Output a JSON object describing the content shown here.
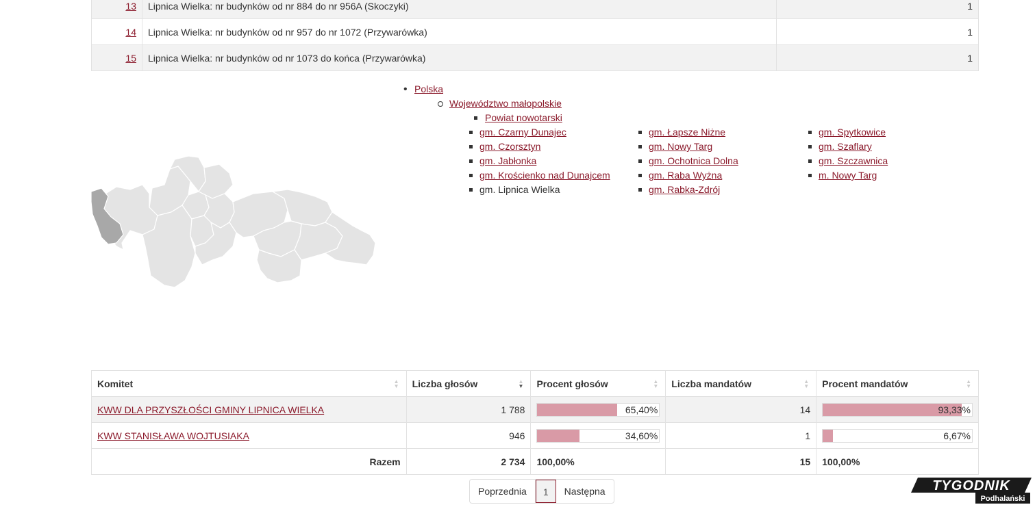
{
  "districts": [
    {
      "num": "13",
      "name": "Lipnica Wielka: nr budynków od nr 884 do nr 956A (Skoczyki)",
      "value": "1"
    },
    {
      "num": "14",
      "name": "Lipnica Wielka: nr budynków od nr 957 do nr 1072 (Przywarówka)",
      "value": "1"
    },
    {
      "num": "15",
      "name": "Lipnica Wielka: nr budynków od nr 1073 do końca (Przywarówka)",
      "value": "1"
    }
  ],
  "breadcrumb": {
    "country": "Polska",
    "voivodeship": "Województwo małopolskie",
    "county": "Powiat nowotarski"
  },
  "gminy": [
    "gm. Czarny Dunajec",
    "gm. Czorsztyn",
    "gm. Jabłonka",
    "gm. Krościenko nad Dunajcem",
    "gm. Lipnica Wielka",
    "gm. Łapsze Niżne",
    "gm. Nowy Targ",
    "gm. Ochotnica Dolna",
    "gm. Raba Wyżna",
    "gm. Rabka-Zdrój",
    "gm. Spytkowice",
    "gm. Szaflary",
    "gm. Szczawnica",
    "m. Nowy Targ"
  ],
  "current_gmina": "gm. Lipnica Wielka",
  "results": {
    "headers": [
      "Komitet",
      "Liczba głosów",
      "Procent głosów",
      "Liczba mandatów",
      "Procent mandatów"
    ],
    "rows": [
      {
        "name": "KWW DLA PRZYSZŁOŚCI GMINY LIPNICA WIELKA",
        "votes": "1 788",
        "vote_pct": "65,40%",
        "vote_frac": 0.654,
        "seats": "14",
        "seat_pct": "93,33%",
        "seat_frac": 0.9333
      },
      {
        "name": "KWW STANISŁAWA WOJTUSIAKA",
        "votes": "946",
        "vote_pct": "34,60%",
        "vote_frac": 0.346,
        "seats": "1",
        "seat_pct": "6,67%",
        "seat_frac": 0.0667
      }
    ],
    "total": {
      "label": "Razem",
      "votes": "2 734",
      "vote_pct": "100,00%",
      "seats": "15",
      "seat_pct": "100,00%"
    }
  },
  "pagination": {
    "prev": "Poprzednia",
    "current": "1",
    "next": "Następna"
  },
  "logo": {
    "main": "TYGODNIK",
    "sub": "Podhalański"
  },
  "colors": {
    "link": "#8b1a2b",
    "bar": "#d99aa6",
    "map_region": "#e4e4e4",
    "map_selected": "#a8a8a8"
  }
}
